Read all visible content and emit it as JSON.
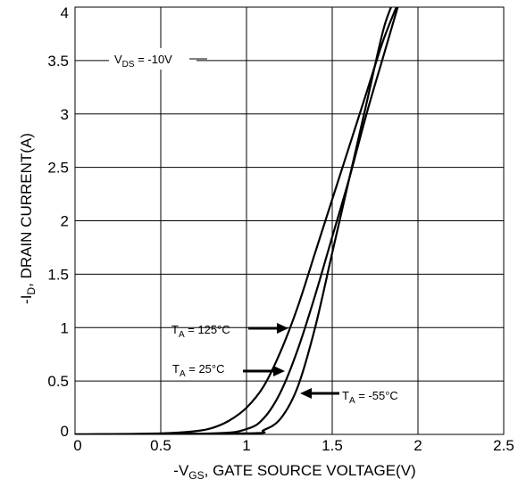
{
  "chart_data": {
    "type": "line",
    "xlabel": {
      "prefix": "-V",
      "sub": "GS",
      "rest": ", GATE SOURCE VOLTAGE(V)"
    },
    "ylabel": {
      "prefix": "-I",
      "sub": "D",
      "rest": ", DRAIN CURRENT(A)"
    },
    "xlim": [
      0,
      2.5
    ],
    "ylim": [
      0,
      4
    ],
    "x_ticks": [
      "0",
      "0.5",
      "1",
      "1.5",
      "2",
      "2.5"
    ],
    "y_ticks": [
      "0",
      "0.5",
      "1",
      "1.5",
      "2",
      "2.5",
      "3",
      "3.5",
      "4"
    ],
    "grid": true,
    "legend": "none",
    "line_color": "#000000",
    "series": [
      {
        "name": "TA = 125°C",
        "x": [
          0,
          0.5,
          0.7,
          0.8,
          0.9,
          1.0,
          1.1,
          1.2,
          1.3,
          1.4,
          1.5,
          1.6,
          1.7,
          1.8,
          1.9
        ],
        "y": [
          0,
          0.01,
          0.03,
          0.06,
          0.13,
          0.25,
          0.45,
          0.78,
          1.2,
          1.7,
          2.2,
          2.7,
          3.2,
          3.7,
          4.1
        ]
      },
      {
        "name": "TA = 25°C",
        "x": [
          0,
          0.8,
          1.0,
          1.1,
          1.2,
          1.3,
          1.4,
          1.5,
          1.6,
          1.7,
          1.8,
          1.9
        ],
        "y": [
          0,
          0.01,
          0.05,
          0.15,
          0.4,
          0.8,
          1.3,
          1.85,
          2.4,
          3.0,
          3.55,
          4.1
        ]
      },
      {
        "name": "TA = -55°C",
        "x": [
          0,
          1.0,
          1.1,
          1.2,
          1.3,
          1.4,
          1.5,
          1.6,
          1.7,
          1.8,
          1.87
        ],
        "y": [
          0,
          0.01,
          0.04,
          0.15,
          0.45,
          1.0,
          1.7,
          2.4,
          3.1,
          3.8,
          4.1
        ]
      }
    ],
    "annotations": [
      {
        "prefix": "V",
        "sub": "DS",
        "rest": " = -10V"
      },
      {
        "prefix": "T",
        "sub": "A",
        "rest": " = 125°C"
      },
      {
        "prefix": "T",
        "sub": "A",
        "rest": " = 25°C"
      },
      {
        "prefix": "T",
        "sub": "A",
        "rest": " = -55°C"
      }
    ]
  }
}
